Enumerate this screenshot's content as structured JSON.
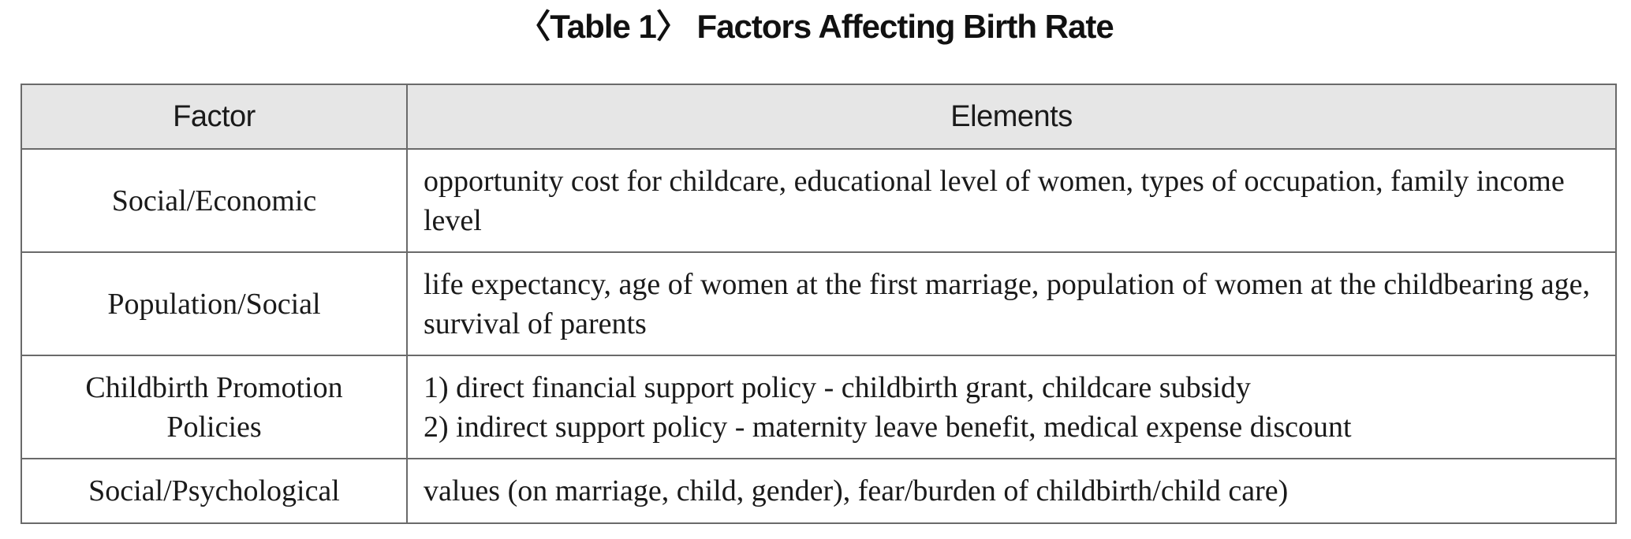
{
  "caption": "〈Table 1〉 Factors Affecting Birth Rate",
  "table": {
    "headers": [
      "Factor",
      "Elements"
    ],
    "rows": [
      {
        "factor": "Social/Economic",
        "elements": [
          "opportunity cost for childcare, educational level of women, types of occupation, family income level"
        ]
      },
      {
        "factor": "Population/Social",
        "elements": [
          "life expectancy, age of women at the first marriage, population of women at the childbearing age, survival of parents"
        ]
      },
      {
        "factor": "Childbirth Promotion Policies",
        "elements": [
          "1) direct financial support policy - childbirth grant, childcare subsidy",
          "2) indirect support policy - maternity leave benefit, medical expense discount"
        ]
      },
      {
        "factor": "Social/Psychological",
        "elements": [
          "values (on marriage, child, gender), fear/burden of childbirth/child care)"
        ]
      }
    ]
  }
}
